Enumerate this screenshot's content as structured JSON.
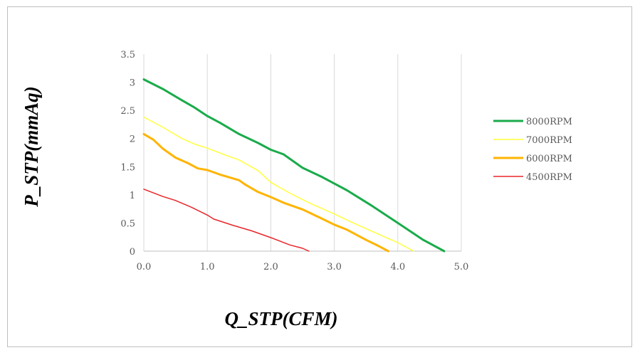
{
  "chart_data": {
    "type": "line",
    "xlabel": "Q_STP(CFM)",
    "ylabel": "P_STP(mmAq)",
    "xlim": [
      0,
      5
    ],
    "ylim": [
      0,
      3.5
    ],
    "xticks": [
      "0.0",
      "1.0",
      "2.0",
      "3.0",
      "4.0",
      "5.0"
    ],
    "yticks": [
      "0",
      "0.5",
      "1",
      "1.5",
      "2",
      "2.5",
      "3",
      "3.5"
    ],
    "grid": "vertical",
    "legend_position": "right",
    "series": [
      {
        "name": "8000RPM",
        "color": "#1aab4b",
        "width": 3,
        "points": [
          [
            0,
            3.05
          ],
          [
            0.3,
            2.88
          ],
          [
            0.6,
            2.68
          ],
          [
            0.8,
            2.55
          ],
          [
            1.0,
            2.4
          ],
          [
            1.2,
            2.28
          ],
          [
            1.5,
            2.08
          ],
          [
            1.8,
            1.92
          ],
          [
            2.0,
            1.8
          ],
          [
            2.2,
            1.72
          ],
          [
            2.5,
            1.48
          ],
          [
            2.8,
            1.32
          ],
          [
            3.2,
            1.08
          ],
          [
            3.6,
            0.8
          ],
          [
            4.0,
            0.5
          ],
          [
            4.4,
            0.2
          ],
          [
            4.73,
            0
          ]
        ]
      },
      {
        "name": "7000RPM",
        "color": "#ffff3c",
        "width": 1.5,
        "points": [
          [
            0,
            2.38
          ],
          [
            0.3,
            2.2
          ],
          [
            0.6,
            2.0
          ],
          [
            0.8,
            1.9
          ],
          [
            1.0,
            1.83
          ],
          [
            1.3,
            1.7
          ],
          [
            1.5,
            1.62
          ],
          [
            1.8,
            1.43
          ],
          [
            2.0,
            1.22
          ],
          [
            2.3,
            1.03
          ],
          [
            2.6,
            0.86
          ],
          [
            3.0,
            0.66
          ],
          [
            3.3,
            0.5
          ],
          [
            3.7,
            0.3
          ],
          [
            4.0,
            0.15
          ],
          [
            4.25,
            0
          ]
        ]
      },
      {
        "name": "6000RPM",
        "color": "#ffb400",
        "width": 3,
        "points": [
          [
            0,
            2.08
          ],
          [
            0.15,
            1.98
          ],
          [
            0.3,
            1.82
          ],
          [
            0.5,
            1.66
          ],
          [
            0.7,
            1.56
          ],
          [
            0.85,
            1.47
          ],
          [
            1.0,
            1.44
          ],
          [
            1.2,
            1.36
          ],
          [
            1.5,
            1.26
          ],
          [
            1.6,
            1.18
          ],
          [
            1.8,
            1.05
          ],
          [
            2.0,
            0.96
          ],
          [
            2.2,
            0.86
          ],
          [
            2.5,
            0.74
          ],
          [
            2.8,
            0.58
          ],
          [
            3.0,
            0.47
          ],
          [
            3.2,
            0.38
          ],
          [
            3.5,
            0.2
          ],
          [
            3.7,
            0.09
          ],
          [
            3.85,
            0
          ]
        ]
      },
      {
        "name": "4500RPM",
        "color": "#e8262a",
        "width": 1.5,
        "points": [
          [
            0,
            1.1
          ],
          [
            0.3,
            0.97
          ],
          [
            0.5,
            0.9
          ],
          [
            0.75,
            0.78
          ],
          [
            1.0,
            0.64
          ],
          [
            1.1,
            0.57
          ],
          [
            1.4,
            0.46
          ],
          [
            1.7,
            0.36
          ],
          [
            2.0,
            0.24
          ],
          [
            2.3,
            0.11
          ],
          [
            2.5,
            0.05
          ],
          [
            2.6,
            0
          ]
        ]
      }
    ]
  }
}
